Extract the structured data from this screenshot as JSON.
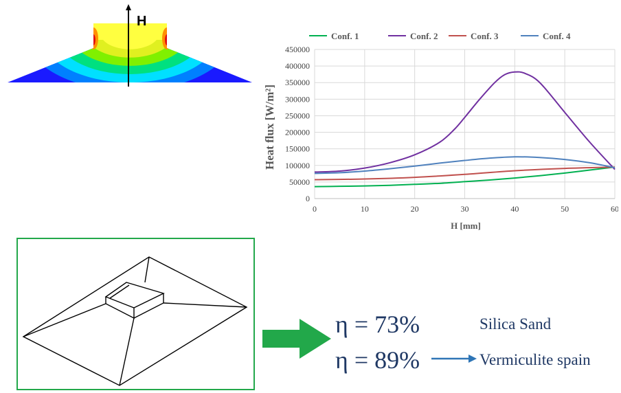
{
  "contour": {
    "axis_label": "H",
    "colormap": [
      "#1a1aff",
      "#0080ff",
      "#00e0ff",
      "#00e080",
      "#80f000",
      "#e0f020",
      "#ffff40",
      "#ff9000",
      "#e01010"
    ]
  },
  "chart_data": {
    "type": "line",
    "title": "",
    "xlabel": "H [mm]",
    "ylabel": "Heat flux [W/m²]",
    "xlim": [
      0,
      60
    ],
    "ylim": [
      0,
      450000
    ],
    "xticks": [
      0,
      10,
      20,
      30,
      40,
      50,
      60
    ],
    "yticks": [
      0,
      50000,
      100000,
      150000,
      200000,
      250000,
      300000,
      350000,
      400000,
      450000
    ],
    "grid": true,
    "legend_position": "top",
    "series": [
      {
        "name": "Conf. 1",
        "color": "#00b050",
        "x": [
          0,
          5,
          10,
          15,
          20,
          25,
          30,
          35,
          40,
          45,
          50,
          55,
          60
        ],
        "y": [
          36000,
          37000,
          38000,
          40000,
          43000,
          46000,
          51000,
          56000,
          62000,
          69000,
          77000,
          86000,
          95000
        ]
      },
      {
        "name": "Conf. 2",
        "color": "#7030a0",
        "x": [
          0,
          5,
          10,
          15,
          20,
          25,
          28,
          30,
          33,
          36,
          38,
          40,
          42,
          45,
          50,
          55,
          60
        ],
        "y": [
          80000,
          83000,
          92000,
          108000,
          132000,
          170000,
          210000,
          245000,
          300000,
          350000,
          374000,
          382000,
          378000,
          350000,
          260000,
          170000,
          88000
        ]
      },
      {
        "name": "Conf. 3",
        "color": "#c0504d",
        "x": [
          0,
          10,
          20,
          30,
          40,
          50,
          60
        ],
        "y": [
          57000,
          59000,
          64000,
          73000,
          84000,
          91000,
          95000
        ]
      },
      {
        "name": "Conf. 4",
        "color": "#4f81bd",
        "x": [
          0,
          5,
          10,
          15,
          20,
          25,
          30,
          35,
          40,
          45,
          50,
          55,
          60
        ],
        "y": [
          76000,
          78000,
          83000,
          90000,
          98000,
          107000,
          115000,
          122000,
          126000,
          124000,
          118000,
          108000,
          93000
        ]
      }
    ]
  },
  "results": [
    {
      "efficiency": "η = 73%",
      "material": "Silica Sand"
    },
    {
      "efficiency": "η = 89%",
      "material": "Vermiculite spain"
    }
  ]
}
